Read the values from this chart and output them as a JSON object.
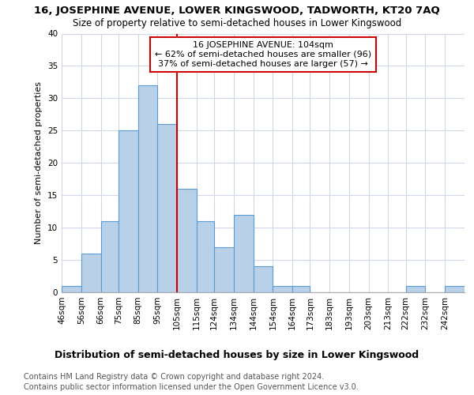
{
  "title": "16, JOSEPHINE AVENUE, LOWER KINGSWOOD, TADWORTH, KT20 7AQ",
  "subtitle": "Size of property relative to semi-detached houses in Lower Kingswood",
  "xlabel_bottom": "Distribution of semi-detached houses by size in Lower Kingswood",
  "ylabel": "Number of semi-detached properties",
  "footer_line1": "Contains HM Land Registry data © Crown copyright and database right 2024.",
  "footer_line2": "Contains public sector information licensed under the Open Government Licence v3.0.",
  "annotation_line1": "16 JOSEPHINE AVENUE: 104sqm",
  "annotation_line2": "← 62% of semi-detached houses are smaller (96)",
  "annotation_line3": "37% of semi-detached houses are larger (57) →",
  "bar_left_edges": [
    46,
    56,
    66,
    75,
    85,
    95,
    105,
    115,
    124,
    134,
    144,
    154,
    164,
    173,
    183,
    193,
    203,
    213,
    222,
    232,
    242
  ],
  "bar_heights": [
    1,
    6,
    11,
    25,
    32,
    26,
    16,
    11,
    7,
    12,
    4,
    1,
    1,
    0,
    0,
    0,
    0,
    0,
    1,
    0,
    1
  ],
  "bar_widths": [
    10,
    10,
    9,
    10,
    10,
    10,
    10,
    9,
    10,
    10,
    10,
    10,
    9,
    10,
    10,
    10,
    10,
    9,
    10,
    10,
    10
  ],
  "tick_labels": [
    "46sqm",
    "56sqm",
    "66sqm",
    "75sqm",
    "85sqm",
    "95sqm",
    "105sqm",
    "115sqm",
    "124sqm",
    "134sqm",
    "144sqm",
    "154sqm",
    "164sqm",
    "173sqm",
    "183sqm",
    "193sqm",
    "203sqm",
    "213sqm",
    "222sqm",
    "232sqm",
    "242sqm"
  ],
  "bar_color": "#b8d0e8",
  "bar_edge_color": "#5b9bd5",
  "vline_x": 105,
  "vline_color": "#cc0000",
  "background_color": "#ffffff",
  "grid_color": "#d0d8e8",
  "ylim": [
    0,
    40
  ],
  "yticks": [
    0,
    5,
    10,
    15,
    20,
    25,
    30,
    35,
    40
  ],
  "title_fontsize": 9.5,
  "subtitle_fontsize": 8.5,
  "ylabel_fontsize": 8,
  "tick_fontsize": 7.5,
  "annotation_fontsize": 8,
  "footer_fontsize": 7,
  "xlabel_fontsize": 9
}
